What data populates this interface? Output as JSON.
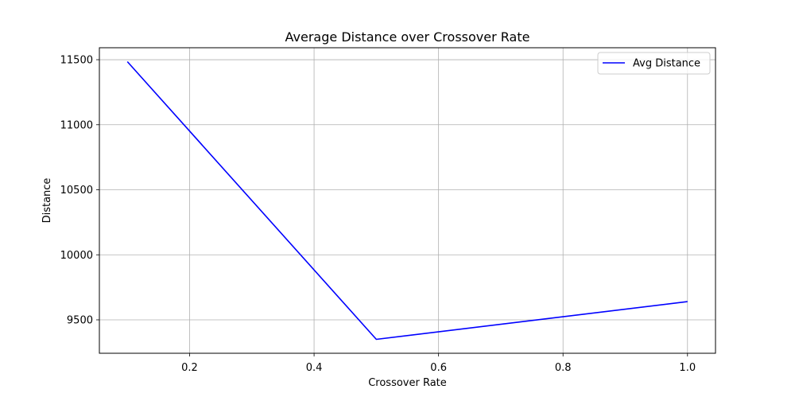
{
  "chart_data": {
    "type": "line",
    "title": "Average Distance over Crossover Rate",
    "xlabel": "Crossover Rate",
    "ylabel": "Distance",
    "x": [
      0.1,
      0.5,
      1.0
    ],
    "series": [
      {
        "name": "Avg Distance",
        "color": "#0000ff",
        "values": [
          11485,
          9350,
          9640
        ]
      }
    ],
    "xlim": [
      0.055,
      1.045
    ],
    "ylim": [
      9243,
      11592
    ],
    "xticks": [
      0.2,
      0.4,
      0.6,
      0.8,
      1.0
    ],
    "xtick_labels": [
      "0.2",
      "0.4",
      "0.6",
      "0.8",
      "1.0"
    ],
    "yticks": [
      9500,
      10000,
      10500,
      11000,
      11500
    ],
    "ytick_labels": [
      "9500",
      "10000",
      "10500",
      "11000",
      "11500"
    ],
    "grid": true,
    "legend_position": "top-right"
  }
}
